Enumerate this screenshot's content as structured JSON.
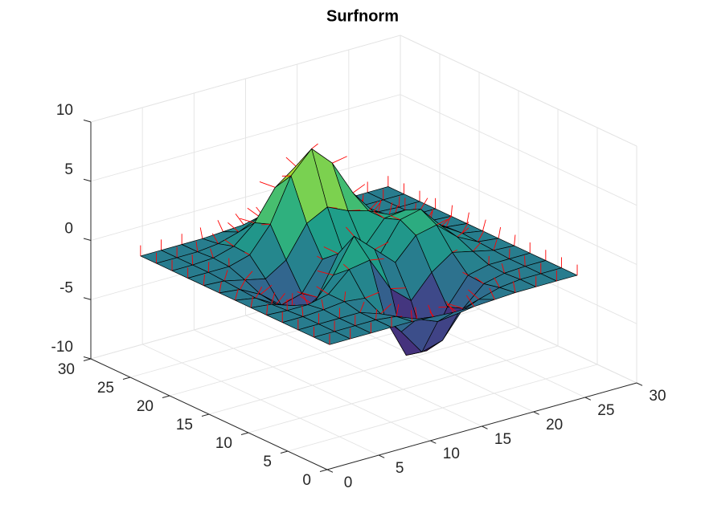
{
  "chart_data": {
    "type": "surface",
    "title": "Surfnorm",
    "x": [
      1,
      3,
      5,
      7,
      9,
      11,
      13,
      15,
      17,
      19,
      21,
      23,
      25
    ],
    "y": [
      1,
      3,
      5,
      7,
      9,
      11,
      13,
      15,
      17,
      19,
      21,
      23,
      25
    ],
    "z": [
      [
        0,
        0,
        0,
        0,
        0,
        -0.1,
        -0.2,
        -0.2,
        -0.1,
        0,
        0,
        0,
        0
      ],
      [
        0,
        0,
        0,
        0,
        -0.2,
        -0.9,
        -1.6,
        -1.4,
        -0.7,
        -0.2,
        0,
        0,
        0
      ],
      [
        0,
        0,
        0,
        0,
        -0.6,
        -2.6,
        -4.8,
        -4.3,
        -2.1,
        -0.5,
        -0.1,
        0,
        0
      ],
      [
        0,
        0,
        0.1,
        0.3,
        0.1,
        -2.2,
        -5.7,
        -5.8,
        -2.6,
        -0.4,
        0,
        0,
        0
      ],
      [
        0,
        -0.1,
        -0.1,
        0.3,
        1.9,
        2.2,
        -0.7,
        -2.2,
        -0.3,
        0.9,
        0.5,
        0.1,
        0
      ],
      [
        0,
        -0.2,
        -0.8,
        -1.2,
        0.8,
        3.6,
        2.0,
        0.4,
        2.2,
        2.6,
        1.1,
        0.2,
        0
      ],
      [
        0,
        -0.3,
        -1.3,
        -2.8,
        -1.7,
        1.5,
        1.0,
        0.4,
        2.9,
        3.3,
        1.4,
        0.3,
        0
      ],
      [
        0,
        -0.2,
        -1.1,
        -2.5,
        -2.0,
        0.4,
        0.5,
        0.4,
        2.4,
        2.6,
        1.1,
        0.2,
        0
      ],
      [
        0,
        -0.1,
        -0.5,
        -0.9,
        0.2,
        2.8,
        3.7,
        2.9,
        2.4,
        1.6,
        0.6,
        0.1,
        0
      ],
      [
        0,
        0,
        0,
        0.5,
        2.6,
        6.2,
        8.0,
        6.3,
        3.3,
        1.2,
        0.3,
        0,
        0
      ],
      [
        0,
        0,
        0.1,
        0.6,
        2.1,
        4.6,
        5.9,
        4.6,
        2.2,
        0.7,
        0.1,
        0,
        0
      ],
      [
        0,
        0,
        0,
        0.2,
        0.7,
        1.5,
        1.9,
        1.5,
        0.7,
        0.2,
        0,
        0,
        0
      ],
      [
        0,
        0,
        0,
        0,
        0.1,
        0.2,
        0.3,
        0.2,
        0.1,
        0,
        0,
        0,
        0
      ]
    ],
    "xlim": [
      0,
      30
    ],
    "ylim": [
      0,
      30
    ],
    "zlim": [
      -10,
      10
    ],
    "xticks": [
      0,
      5,
      10,
      15,
      20,
      25,
      30
    ],
    "yticks": [
      0,
      5,
      10,
      15,
      20,
      25,
      30
    ],
    "zticks": [
      -10,
      -5,
      0,
      5,
      10
    ],
    "grid": true,
    "colormap": [
      "#440154",
      "#482878",
      "#3e4989",
      "#31688e",
      "#26828e",
      "#1f9e89",
      "#35b779",
      "#6ece58",
      "#b5de2b",
      "#fde725"
    ],
    "edge_color": "#000000",
    "normal_color": "#ff0000"
  }
}
